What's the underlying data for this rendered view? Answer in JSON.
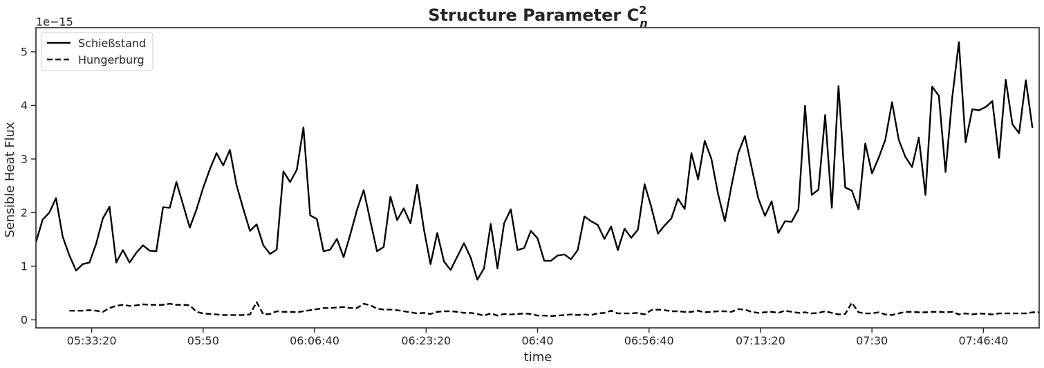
{
  "chart_data": {
    "type": "line",
    "title": "Structure Parameter C",
    "title_superscript": "2",
    "title_subscript": "n",
    "xlabel": "time",
    "ylabel": "Sensible Heat Flux",
    "y_offset_label": "1e−15",
    "x_range": [
      "05:25:00",
      "07:55:00"
    ],
    "ylim": [
      -0.15,
      5.45
    ],
    "y_unit_scale": "1e-15",
    "x_ticks": [
      "05:33:20",
      "05:50",
      "06:06:40",
      "06:23:20",
      "06:40",
      "06:56:40",
      "07:13:20",
      "07:30",
      "07:46:40"
    ],
    "x_tick_times": [
      "05:33:20",
      "05:50:00",
      "06:06:40",
      "06:23:20",
      "06:40:00",
      "06:56:40",
      "07:13:20",
      "07:30:00",
      "07:46:40"
    ],
    "y_ticks": [
      0,
      1,
      2,
      3,
      4,
      5
    ],
    "y_tick_labels": [
      "0",
      "1",
      "2",
      "3",
      "4",
      "5"
    ],
    "grid": false,
    "legend": {
      "placement": "top-left",
      "entries": [
        "Schießstand",
        "Hungerburg"
      ]
    },
    "series": [
      {
        "name": "Schießstand",
        "style": "solid",
        "color": "#000000",
        "x_start": "05:25:00",
        "x_step_seconds": 60,
        "values": [
          1.45,
          1.87,
          2.0,
          2.27,
          1.55,
          1.2,
          0.92,
          1.04,
          1.07,
          1.42,
          1.89,
          2.11,
          1.07,
          1.3,
          1.07,
          1.25,
          1.39,
          1.29,
          1.28,
          2.1,
          2.09,
          2.57,
          2.15,
          1.72,
          2.06,
          2.46,
          2.81,
          3.11,
          2.88,
          3.17,
          2.51,
          2.07,
          1.66,
          1.78,
          1.39,
          1.23,
          1.31,
          2.77,
          2.57,
          2.8,
          3.59,
          1.95,
          1.88,
          1.28,
          1.31,
          1.51,
          1.17,
          1.59,
          2.05,
          2.42,
          1.84,
          1.28,
          1.36,
          2.3,
          1.86,
          2.08,
          1.8,
          2.52,
          1.69,
          1.04,
          1.62,
          1.09,
          0.93,
          1.18,
          1.43,
          1.16,
          0.75,
          0.96,
          1.79,
          0.96,
          1.8,
          2.06,
          1.3,
          1.34,
          1.66,
          1.52,
          1.1,
          1.1,
          1.2,
          1.22,
          1.13,
          1.3,
          1.93,
          1.84,
          1.77,
          1.51,
          1.74,
          1.3,
          1.7,
          1.53,
          1.68,
          2.53,
          2.11,
          1.61,
          1.76,
          1.89,
          2.26,
          2.07,
          3.11,
          2.62,
          3.34,
          3.0,
          2.34,
          1.84,
          2.5,
          3.11,
          3.43,
          2.85,
          2.27,
          1.94,
          2.21,
          1.62,
          1.84,
          1.83,
          2.06,
          3.99,
          2.33,
          2.43,
          3.82,
          2.09,
          4.36,
          2.47,
          2.41,
          2.06,
          3.29,
          2.73,
          3.02,
          3.36,
          4.06,
          3.36,
          3.04,
          2.85,
          3.4,
          2.33,
          4.35,
          4.18,
          2.76,
          4.14,
          5.18,
          3.31,
          3.93,
          3.91,
          3.97,
          4.08,
          3.02,
          4.48,
          3.65,
          3.48,
          4.47,
          3.58
        ]
      },
      {
        "name": "Hungerburg",
        "style": "dashed",
        "color": "#000000",
        "x_start": "05:30:00",
        "x_step_seconds": 60,
        "values": [
          0.17,
          0.17,
          0.17,
          0.18,
          0.17,
          0.15,
          0.22,
          0.26,
          0.28,
          0.26,
          0.27,
          0.29,
          0.28,
          0.28,
          0.28,
          0.3,
          0.28,
          0.28,
          0.27,
          0.15,
          0.12,
          0.11,
          0.1,
          0.09,
          0.09,
          0.09,
          0.09,
          0.1,
          0.33,
          0.1,
          0.11,
          0.16,
          0.15,
          0.15,
          0.14,
          0.16,
          0.18,
          0.2,
          0.22,
          0.22,
          0.23,
          0.24,
          0.22,
          0.22,
          0.3,
          0.27,
          0.21,
          0.19,
          0.19,
          0.18,
          0.16,
          0.14,
          0.12,
          0.13,
          0.11,
          0.15,
          0.16,
          0.16,
          0.15,
          0.13,
          0.13,
          0.11,
          0.08,
          0.12,
          0.08,
          0.11,
          0.1,
          0.11,
          0.12,
          0.11,
          0.08,
          0.08,
          0.07,
          0.08,
          0.09,
          0.1,
          0.09,
          0.1,
          0.09,
          0.12,
          0.13,
          0.17,
          0.12,
          0.12,
          0.12,
          0.13,
          0.1,
          0.18,
          0.19,
          0.18,
          0.16,
          0.16,
          0.15,
          0.15,
          0.17,
          0.14,
          0.15,
          0.16,
          0.16,
          0.15,
          0.2,
          0.19,
          0.15,
          0.13,
          0.14,
          0.15,
          0.13,
          0.17,
          0.15,
          0.13,
          0.14,
          0.12,
          0.13,
          0.16,
          0.13,
          0.1,
          0.11,
          0.32,
          0.14,
          0.12,
          0.12,
          0.14,
          0.1,
          0.09,
          0.12,
          0.15,
          0.15,
          0.14,
          0.14,
          0.15,
          0.15,
          0.14,
          0.15,
          0.1,
          0.12,
          0.1,
          0.12,
          0.11,
          0.1,
          0.12,
          0.12,
          0.12,
          0.12,
          0.12,
          0.14,
          0.14,
          0.14,
          0.15,
          0.19,
          0.16,
          0.12
        ]
      }
    ]
  }
}
